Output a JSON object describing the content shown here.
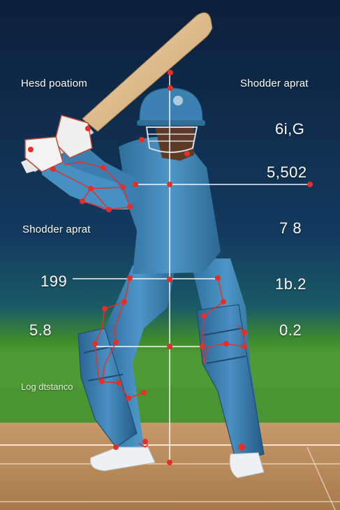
{
  "labels": {
    "head_position": "Hesd poatiom",
    "shoulder_apart_top": "Shodder aprat",
    "shoulder_apart_mid": "Shodder aprat",
    "leg_distance": "Log dtstanco"
  },
  "values": {
    "v1": "6i,G",
    "v2": "5,502",
    "v3": "7 8",
    "v4": "199",
    "v5": "1b.2",
    "v6": "5.8",
    "v7": "0.2"
  },
  "colors": {
    "sky_top": "#0b1f3a",
    "sky_bottom": "#17456a",
    "field_green": "#3f8c2c",
    "pitch": "#b78a57",
    "kit_blue": "#3f86b8",
    "marker_red": "#e5302a",
    "line_white": "#ffffff"
  },
  "icons": {
    "player": "batter-figure",
    "bat": "cricket-bat",
    "helmet": "helmet-icon",
    "keypoint": "red-dot-marker"
  }
}
